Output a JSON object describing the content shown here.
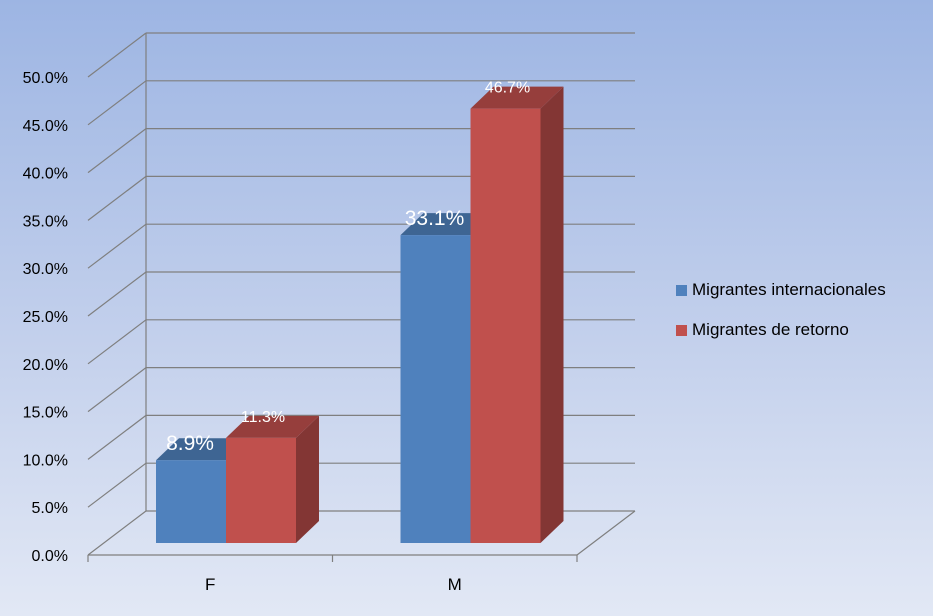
{
  "chart_data": {
    "type": "bar",
    "categories": [
      "F",
      "M"
    ],
    "series": [
      {
        "name": "Migrantes internacionales",
        "values": [
          8.9,
          33.1
        ],
        "labels": [
          "8.9%",
          "33.1%"
        ],
        "color": "#4f81bd"
      },
      {
        "name": "Migrantes de retorno",
        "values": [
          11.3,
          46.7
        ],
        "labels": [
          "11.3%",
          "46.7%"
        ],
        "color": "#c0504d"
      }
    ],
    "ylim": [
      0,
      50
    ],
    "yticks": [
      "0.0%",
      "5.0%",
      "10.0%",
      "15.0%",
      "20.0%",
      "25.0%",
      "30.0%",
      "35.0%",
      "40.0%",
      "45.0%",
      "50.0%"
    ],
    "grid": true,
    "legend_position": "right",
    "three_d": true
  }
}
